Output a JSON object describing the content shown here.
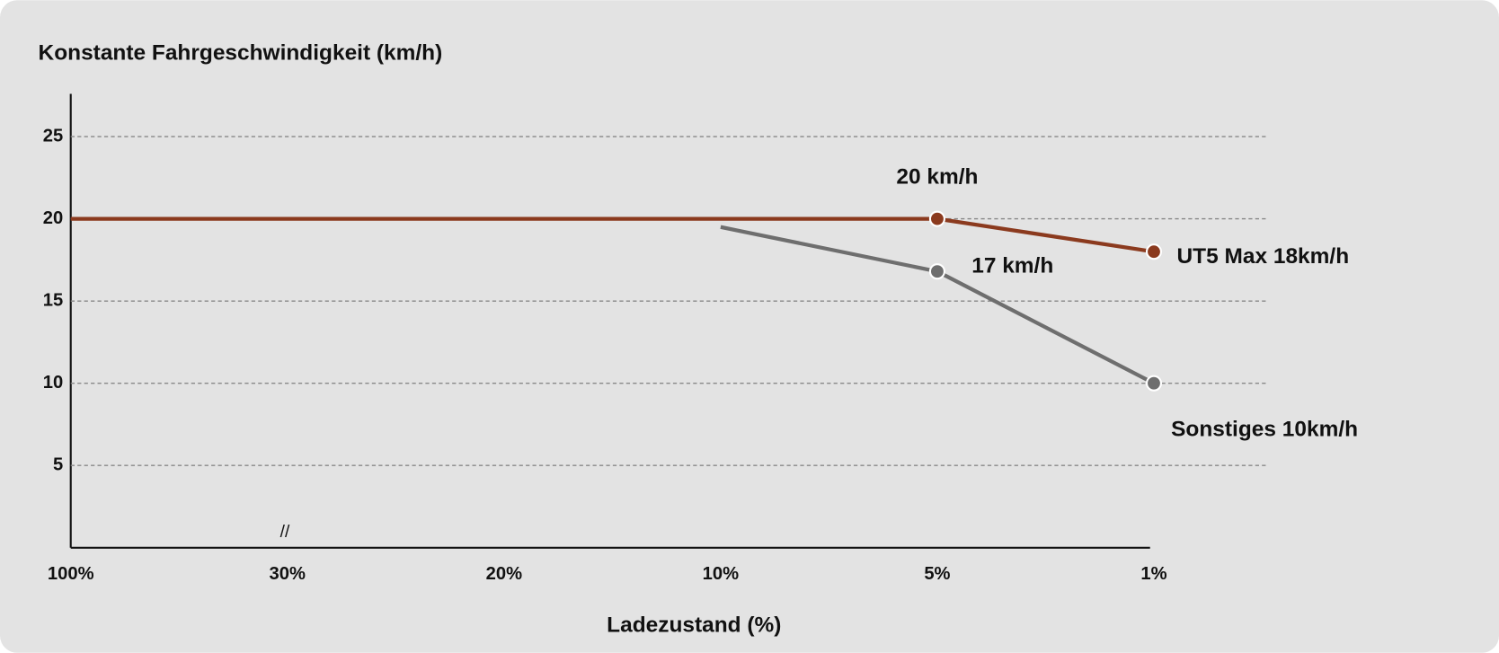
{
  "chart_data": {
    "type": "line",
    "title": "Konstante Fahrgeschwindigkeit (km/h)",
    "x_label": "Ladezustand (%)",
    "axis_break": "//",
    "categories": [
      "100%",
      "30%",
      "20%",
      "10%",
      "5%",
      "1%"
    ],
    "series": [
      {
        "name": "UT5 Max 18km/h",
        "color": "#8b3a1e",
        "values": [
          20,
          20,
          20,
          20,
          20,
          18
        ],
        "value_labels": [
          null,
          null,
          null,
          null,
          "20 km/h",
          null
        ]
      },
      {
        "name": "Sonstiges 10km/h",
        "color": "#6e6e6e",
        "values": [
          null,
          null,
          null,
          19.5,
          16.8,
          10
        ],
        "value_labels": [
          null,
          null,
          null,
          null,
          "17 km/h",
          null
        ]
      }
    ],
    "ylim": [
      0,
      27.6
    ],
    "yticks": [
      5,
      10,
      15,
      20,
      25
    ],
    "grid": true
  }
}
